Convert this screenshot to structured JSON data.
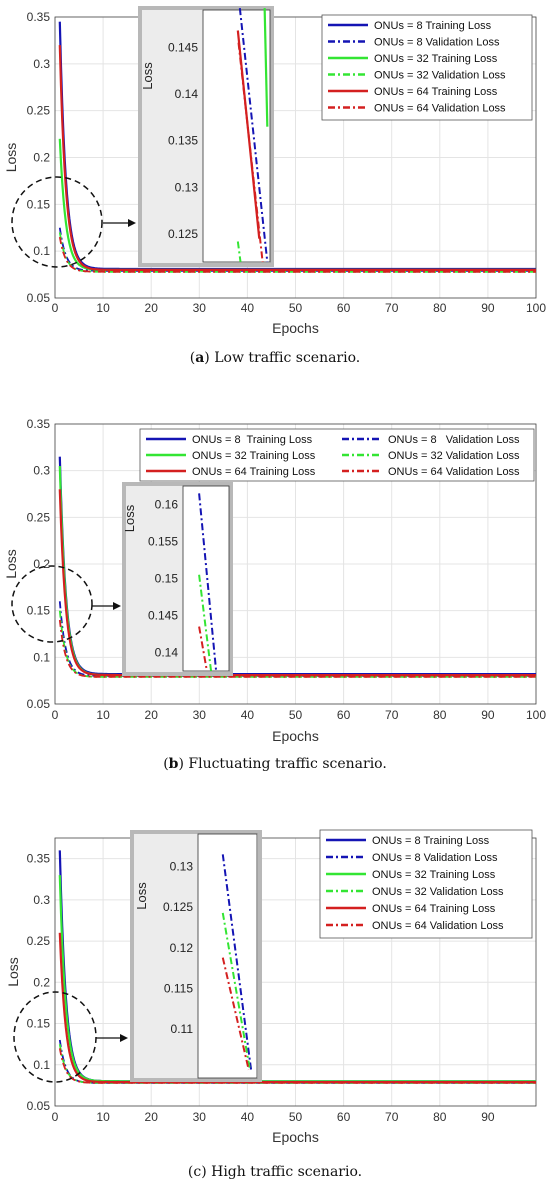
{
  "captions": [
    {
      "letter": "a",
      "text": " Low traffic scenario."
    },
    {
      "letter": "b",
      "text": " Fluctuating traffic scenario."
    },
    {
      "letter": "c",
      "text": " High traffic scenario."
    }
  ],
  "colors": {
    "onu8": "#1414b4",
    "onu32": "#33e533",
    "onu64": "#d42020",
    "grid": "#e4e4e4",
    "inset_border": "#b8b8b8",
    "inset_bg": "#ececec"
  },
  "chart_data": [
    {
      "type": "line",
      "xlabel": "Epochs",
      "ylabel": "Loss",
      "xlim": [
        0,
        100
      ],
      "ylim": [
        0.05,
        0.35
      ],
      "xticks": [
        "0",
        "10",
        "20",
        "30",
        "40",
        "50",
        "60",
        "70",
        "80",
        "90",
        "100"
      ],
      "yticks": [
        "0.05",
        "0.1",
        "0.15",
        "0.2",
        "0.25",
        "0.3",
        "0.35"
      ],
      "legend_layout": "single-column",
      "legend_position": "top-right",
      "series": [
        {
          "name": "ONUs = 8 Training Loss",
          "style": "solid",
          "group": "onu8",
          "start": 0.345,
          "settle": 0.081
        },
        {
          "name": "ONUs = 8 Validation Loss",
          "style": "dashdot",
          "group": "onu8",
          "start": 0.125,
          "settle": 0.079
        },
        {
          "name": "ONUs = 32 Training Loss",
          "style": "solid",
          "group": "onu32",
          "start": 0.22,
          "settle": 0.08
        },
        {
          "name": "ONUs = 32 Validation Loss",
          "style": "dashdot",
          "group": "onu32",
          "start": 0.12,
          "settle": 0.078
        },
        {
          "name": "ONUs = 64 Training Loss",
          "style": "solid",
          "group": "onu64",
          "start": 0.32,
          "settle": 0.08
        },
        {
          "name": "ONUs = 64 Validation Loss",
          "style": "dashdot",
          "group": "onu64",
          "start": 0.115,
          "settle": 0.078
        }
      ],
      "inset": {
        "ylabel": "Loss",
        "ylim": [
          0.122,
          0.149
        ],
        "yticks": [
          "0.125",
          "0.13",
          "0.135",
          "0.14",
          "0.145"
        ],
        "segments": [
          {
            "group": "onu8",
            "style": "dashdot",
            "y0": 0.1492,
            "y1": 0.122,
            "x0": 0.55,
            "x1": 0.96
          },
          {
            "group": "onu32",
            "style": "solid",
            "y0": 0.1492,
            "y1": 0.1365,
            "x0": 0.92,
            "x1": 0.96
          },
          {
            "group": "onu32",
            "style": "dashdot",
            "y0": 0.1242,
            "y1": 0.122,
            "x0": 0.52,
            "x1": 0.56
          },
          {
            "group": "onu64",
            "style": "solid",
            "y0": 0.1468,
            "y1": 0.1245,
            "x0": 0.52,
            "x1": 0.84
          },
          {
            "group": "onu64",
            "style": "dashdot",
            "y0": 0.1455,
            "y1": 0.122,
            "x0": 0.53,
            "x1": 0.89
          }
        ]
      }
    },
    {
      "type": "line",
      "xlabel": "Epochs",
      "ylabel": "Loss",
      "xlim": [
        0,
        100
      ],
      "ylim": [
        0.05,
        0.35
      ],
      "xticks": [
        "0",
        "10",
        "20",
        "30",
        "40",
        "50",
        "60",
        "70",
        "80",
        "90",
        "100"
      ],
      "yticks": [
        "0.05",
        "0.1",
        "0.15",
        "0.2",
        "0.25",
        "0.3",
        "0.35"
      ],
      "legend_layout": "two-column",
      "legend_position": "top-right",
      "series": [
        {
          "name": "ONUs = 8  Training Loss",
          "style": "solid",
          "group": "onu8",
          "start": 0.315,
          "settle": 0.082
        },
        {
          "name": "ONUs = 8   Validation Loss",
          "style": "dashdot",
          "group": "onu8",
          "start": 0.16,
          "settle": 0.08
        },
        {
          "name": "ONUs = 32 Training Loss",
          "style": "solid",
          "group": "onu32",
          "start": 0.305,
          "settle": 0.081
        },
        {
          "name": "ONUs = 32 Validation Loss",
          "style": "dashdot",
          "group": "onu32",
          "start": 0.15,
          "settle": 0.079
        },
        {
          "name": "ONUs = 64 Training Loss",
          "style": "solid",
          "group": "onu64",
          "start": 0.28,
          "settle": 0.081
        },
        {
          "name": "ONUs = 64 Validation Loss",
          "style": "dashdot",
          "group": "onu64",
          "start": 0.14,
          "settle": 0.079
        }
      ],
      "inset": {
        "ylabel": "Loss",
        "ylim": [
          0.1375,
          0.1625
        ],
        "yticks": [
          "0.14",
          "0.145",
          "0.15",
          "0.155",
          "0.16"
        ],
        "segments": [
          {
            "group": "onu8",
            "style": "dashdot",
            "y0": 0.1615,
            "y1": 0.1375,
            "x0": 0.35,
            "x1": 0.72
          },
          {
            "group": "onu32",
            "style": "dashdot",
            "y0": 0.1505,
            "y1": 0.1375,
            "x0": 0.35,
            "x1": 0.61
          },
          {
            "group": "onu64",
            "style": "dashdot",
            "y0": 0.1435,
            "y1": 0.1375,
            "x0": 0.35,
            "x1": 0.52
          }
        ]
      }
    },
    {
      "type": "line",
      "xlabel": "Epochs",
      "ylabel": "Loss",
      "xlim": [
        0,
        100
      ],
      "ylim": [
        0.05,
        0.375
      ],
      "xticks": [
        "0",
        "10",
        "20",
        "30",
        "40",
        "50",
        "60",
        "70",
        "80",
        "90"
      ],
      "yticks": [
        "0.05",
        "0.1",
        "0.15",
        "0.2",
        "0.25",
        "0.3",
        "0.35"
      ],
      "legend_layout": "single-column",
      "legend_position": "top-right",
      "series": [
        {
          "name": "ONUs = 8 Training Loss",
          "style": "solid",
          "group": "onu8",
          "start": 0.36,
          "settle": 0.08
        },
        {
          "name": "ONUs = 8 Validation Loss",
          "style": "dashdot",
          "group": "onu8",
          "start": 0.13,
          "settle": 0.078
        },
        {
          "name": "ONUs = 32 Training Loss",
          "style": "solid",
          "group": "onu32",
          "start": 0.33,
          "settle": 0.08
        },
        {
          "name": "ONUs = 32 Validation Loss",
          "style": "dashdot",
          "group": "onu32",
          "start": 0.125,
          "settle": 0.078
        },
        {
          "name": "ONUs = 64 Training Loss",
          "style": "solid",
          "group": "onu64",
          "start": 0.26,
          "settle": 0.079
        },
        {
          "name": "ONUs = 64 Validation Loss",
          "style": "dashdot",
          "group": "onu64",
          "start": 0.12,
          "settle": 0.078
        }
      ],
      "inset": {
        "ylabel": "Loss",
        "ylim": [
          0.104,
          0.134
        ],
        "yticks": [
          "0.11",
          "0.115",
          "0.12",
          "0.125",
          "0.13"
        ],
        "segments": [
          {
            "group": "onu8",
            "style": "dashdot",
            "y0": 0.1315,
            "y1": 0.105,
            "x0": 0.42,
            "x1": 0.9
          },
          {
            "group": "onu32",
            "style": "dashdot",
            "y0": 0.1243,
            "y1": 0.105,
            "x0": 0.42,
            "x1": 0.88
          },
          {
            "group": "onu64",
            "style": "dashdot",
            "y0": 0.1188,
            "y1": 0.105,
            "x0": 0.42,
            "x1": 0.86
          }
        ]
      }
    }
  ]
}
